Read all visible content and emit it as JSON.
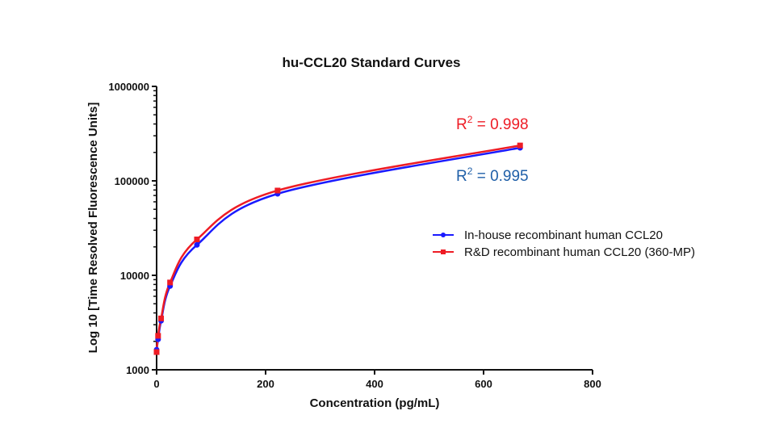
{
  "chart_data": {
    "type": "line",
    "title": "hu-CCL20 Standard Curves",
    "xlabel": "Concentration (pg/mL)",
    "ylabel": "Log 10 [Time Resolved  Fluorescence Units]",
    "xlim": [
      0,
      800
    ],
    "ylim": [
      1000,
      1000000
    ],
    "yscale": "log",
    "x_ticks": [
      0,
      200,
      400,
      600,
      800
    ],
    "x_tick_labels": [
      "0",
      "200",
      "400",
      "600",
      "800"
    ],
    "y_ticks": [
      1000,
      10000,
      100000,
      1000000
    ],
    "y_tick_labels": [
      "1000",
      "10000",
      "100000",
      "1000000"
    ],
    "grid": false,
    "legend_position": "right",
    "series": [
      {
        "name": "In-house recombinant human CCL20",
        "color": "#1a1aff",
        "marker": "circle",
        "x": [
          0,
          2.7,
          8.2,
          24.7,
          74,
          222,
          667
        ],
        "y": [
          1630,
          2100,
          3300,
          7700,
          21000,
          73000,
          224000
        ],
        "r_squared_label": "R² = 0.995",
        "r_squared_color": "#1f5fa8"
      },
      {
        "name": "R&D recombinant human CCL20 (360-MP)",
        "color": "#ee1c25",
        "marker": "square",
        "x": [
          0,
          2.7,
          8.2,
          24.7,
          74,
          222,
          667
        ],
        "y": [
          1540,
          2290,
          3500,
          8400,
          24000,
          79000,
          237000
        ],
        "r_squared_label": "R² = 0.998",
        "r_squared_color": "#ee1c25"
      }
    ],
    "annotations": [
      {
        "text_base": "R",
        "text_sup": "2",
        "text_rest": " = 0.998",
        "color": "#ee1c25"
      },
      {
        "text_base": "R",
        "text_sup": "2",
        "text_rest": " = 0.995",
        "color": "#1f5fa8"
      }
    ]
  }
}
